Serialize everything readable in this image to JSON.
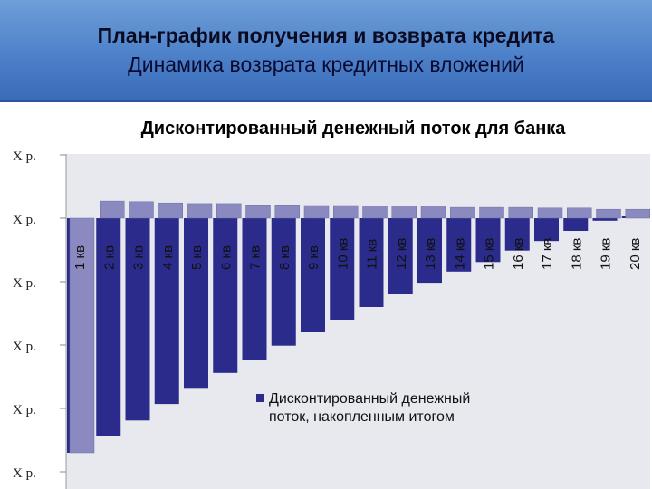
{
  "header": {
    "title": "План-график получения и возврата кредита",
    "subtitle": "Динамика возврата кредитных вложений"
  },
  "chart_data": {
    "type": "bar",
    "title": "Дисконтированный денежный поток для банка",
    "categories": [
      "1 кв",
      "2 кв",
      "3 кв",
      "4 кв",
      "5 кв",
      "6 кв",
      "7 кв",
      "8 кв",
      "9 кв",
      "10 кв",
      "11 кв",
      "12 кв",
      "13 кв",
      "14 кв",
      "15 кв",
      "16 кв",
      "17 кв",
      "18 кв",
      "19 кв",
      "20 кв"
    ],
    "y_ticks": [
      "X р.",
      "X р.",
      "X р.",
      "X р.",
      "X р.",
      "X р."
    ],
    "y_tick_values": [
      1,
      0,
      -1,
      -2,
      -3,
      -4
    ],
    "ylim": [
      -4,
      1
    ],
    "series": [
      {
        "name": "Дисконтированный денежный поток, накопленным итогом",
        "color": "#2b2b8c",
        "values": [
          -3.7,
          -3.44,
          -3.19,
          -2.93,
          -2.69,
          -2.44,
          -2.23,
          -2.01,
          -1.8,
          -1.6,
          -1.4,
          -1.2,
          -1.03,
          -0.84,
          -0.69,
          -0.51,
          -0.36,
          -0.2,
          -0.04,
          0.03
        ]
      },
      {
        "color": "#8a8ac0",
        "values": [
          -3.7,
          0.27,
          0.26,
          0.24,
          0.23,
          0.23,
          0.21,
          0.21,
          0.2,
          0.2,
          0.19,
          0.19,
          0.19,
          0.17,
          0.17,
          0.17,
          0.16,
          0.16,
          0.14,
          0.14
        ]
      }
    ],
    "legend_position": "bottom-center inside",
    "grid": false
  }
}
